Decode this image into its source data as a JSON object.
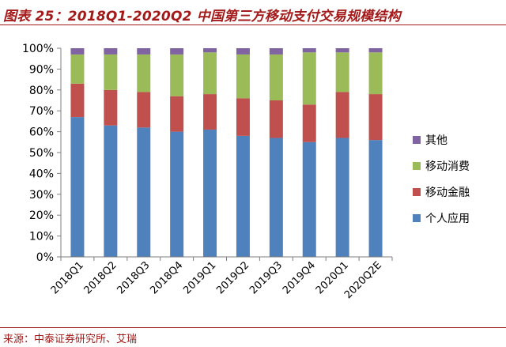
{
  "header": {
    "title": "图表 25：2018Q1-2020Q2 中国第三方移动支付交易规模结构"
  },
  "footer": {
    "source": "来源：中泰证券研究所、艾瑞"
  },
  "chart_data": {
    "type": "bar",
    "stacked": true,
    "categories": [
      "2018Q1",
      "2018Q2",
      "2018Q3",
      "2018Q4",
      "2019Q1",
      "2019Q2",
      "2019Q3",
      "2019Q4",
      "2020Q1",
      "2020Q2E"
    ],
    "series": [
      {
        "name": "个人应用",
        "color": "#4f81bd",
        "values": [
          67,
          63,
          62,
          60,
          61,
          58,
          57,
          55,
          57,
          56
        ]
      },
      {
        "name": "移动金融",
        "color": "#c0504d",
        "values": [
          16,
          17,
          17,
          17,
          17,
          18,
          18,
          18,
          22,
          22
        ]
      },
      {
        "name": "移动消费",
        "color": "#9bbb59",
        "values": [
          14,
          17,
          18,
          20,
          20,
          21,
          22,
          25,
          19,
          20
        ]
      },
      {
        "name": "其他",
        "color": "#8064a2",
        "values": [
          3,
          3,
          3,
          3,
          2,
          3,
          3,
          2,
          2,
          2
        ]
      }
    ],
    "y_ticks": [
      "0%",
      "10%",
      "20%",
      "30%",
      "40%",
      "50%",
      "60%",
      "70%",
      "80%",
      "90%",
      "100%"
    ],
    "ylim": [
      0,
      100
    ],
    "grid": false,
    "legend_position": "right"
  }
}
